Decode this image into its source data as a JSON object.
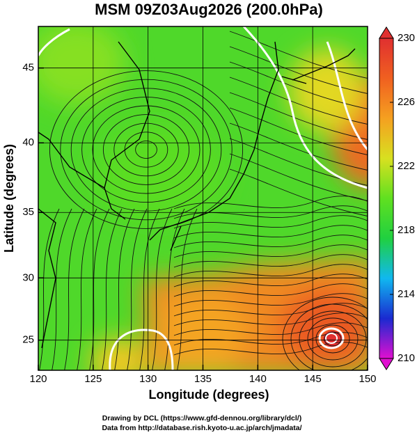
{
  "chart_data": {
    "type": "map",
    "title": "MSM 09Z03Aug2026 (200.0hPa)",
    "xlabel": "Longitude (degrees)",
    "ylabel": "Latitude  (degrees)",
    "xlim": [
      120,
      150
    ],
    "xticks": [
      120,
      125,
      130,
      135,
      140,
      145,
      150
    ],
    "ylim": [
      22.5,
      47.6
    ],
    "yticks": [
      25,
      30,
      35,
      40,
      45
    ],
    "yscale": "mercator",
    "grid": true,
    "colorbar": {
      "lim": [
        210,
        230
      ],
      "ticks": [
        210,
        214,
        218,
        222,
        226,
        230
      ],
      "colors": [
        "#e010d0",
        "#1a2ad0",
        "#10b8f0",
        "#20d040",
        "#60e020",
        "#d8e020",
        "#f5a020",
        "#f06020",
        "#e03030"
      ]
    }
  },
  "credits": [
    "Drawing by DCL (https://www.gfd-dennou.org/library/dcl/)",
    "Data from http://database.rish.kyoto-u.ac.jp/arch/jmadata/"
  ]
}
